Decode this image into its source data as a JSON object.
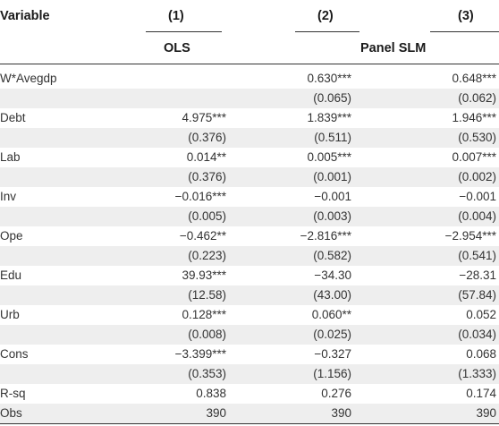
{
  "header": {
    "variable": "Variable",
    "col1_num": "(1)",
    "col2_num": "(2)",
    "col3_num": "(3)",
    "col1_model": "OLS",
    "col23_model": "Panel SLM"
  },
  "rows": [
    {
      "label": "W*Avegdp",
      "c1": "",
      "c2": "0.630***",
      "c3": "0.648***"
    },
    {
      "label": "",
      "c1": "",
      "c2": "(0.065)",
      "c3": "(0.062)"
    },
    {
      "label": "Debt",
      "c1": "4.975***",
      "c2": "1.839***",
      "c3": "1.946***"
    },
    {
      "label": "",
      "c1": "(0.376)",
      "c2": "(0.511)",
      "c3": "(0.530)"
    },
    {
      "label": "Lab",
      "c1": "0.014**",
      "c2": "0.005***",
      "c3": "0.007***"
    },
    {
      "label": "",
      "c1": "(0.376)",
      "c2": "(0.001)",
      "c3": "(0.002)"
    },
    {
      "label": "Inv",
      "c1": "−0.016***",
      "c2": "−0.001",
      "c3": "−0.001"
    },
    {
      "label": "",
      "c1": "(0.005)",
      "c2": "(0.003)",
      "c3": "(0.004)"
    },
    {
      "label": "Ope",
      "c1": "−0.462**",
      "c2": "−2.816***",
      "c3": "−2.954***"
    },
    {
      "label": "",
      "c1": "(0.223)",
      "c2": "(0.582)",
      "c3": "(0.541)"
    },
    {
      "label": "Edu",
      "c1": "39.93***",
      "c2": "−34.30",
      "c3": "−28.31"
    },
    {
      "label": "",
      "c1": "(12.58)",
      "c2": "(43.00)",
      "c3": "(57.84)"
    },
    {
      "label": "Urb",
      "c1": "0.128***",
      "c2": "0.060**",
      "c3": "0.052"
    },
    {
      "label": "",
      "c1": "(0.008)",
      "c2": "(0.025)",
      "c3": "(0.034)"
    },
    {
      "label": "Cons",
      "c1": "−3.399***",
      "c2": "−0.327",
      "c3": "0.068"
    },
    {
      "label": "",
      "c1": "(0.353)",
      "c2": "(1.156)",
      "c3": "(1.333)"
    },
    {
      "label": "R-sq",
      "c1": "0.838",
      "c2": "0.276",
      "c3": "0.174"
    },
    {
      "label": "Obs",
      "c1": "390",
      "c2": "390",
      "c3": "390"
    }
  ]
}
